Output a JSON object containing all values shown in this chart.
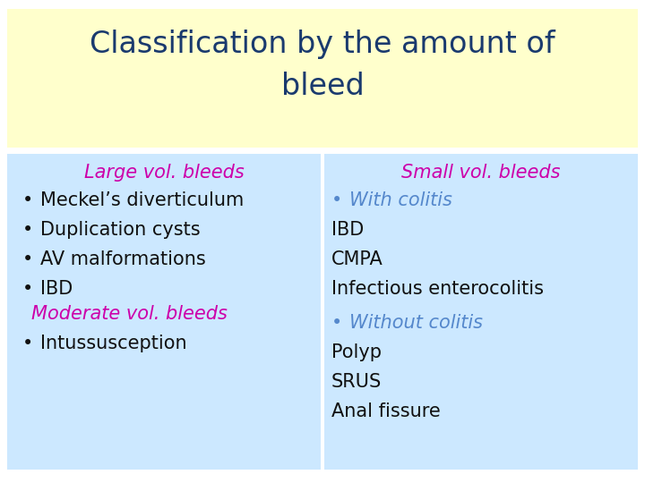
{
  "title_line1": "Classification by the amount of",
  "title_line2": "bleed",
  "title_color": "#1a3a6e",
  "title_bg": "#ffffcc",
  "content_bg": "#cce8ff",
  "left_header": "Large vol. bleeds",
  "left_header_color": "#cc00aa",
  "left_items": [
    {
      "text": "Meckel’s diverticulum",
      "bullet": true,
      "color": "#111111"
    },
    {
      "text": "Duplication cysts",
      "bullet": true,
      "color": "#111111"
    },
    {
      "text": "AV malformations",
      "bullet": true,
      "color": "#111111"
    },
    {
      "text": "IBD",
      "bullet": true,
      "color": "#111111"
    }
  ],
  "moderate_header": "Moderate vol. bleeds",
  "moderate_header_color": "#cc00aa",
  "moderate_items": [
    {
      "text": "Intussusception",
      "bullet": true,
      "color": "#111111"
    }
  ],
  "right_header": "Small vol. bleeds",
  "right_header_color": "#cc00aa",
  "right_section1_label": "With colitis",
  "right_section1_color": "#5588cc",
  "right_section1_items": [
    {
      "text": "IBD",
      "color": "#111111"
    },
    {
      "text": "CMPA",
      "color": "#111111"
    },
    {
      "text": "Infectious enterocolitis",
      "color": "#111111"
    }
  ],
  "right_section2_label": "Without colitis",
  "right_section2_color": "#5588cc",
  "right_section2_items": [
    {
      "text": "Polyp",
      "color": "#111111"
    },
    {
      "text": "SRUS",
      "color": "#111111"
    },
    {
      "text": "Anal fissure",
      "color": "#111111"
    }
  ],
  "fig_bg": "#ffffff",
  "font_family": "Comic Sans MS",
  "title_fontsize": 24,
  "header_fontsize": 15,
  "body_fontsize": 15
}
